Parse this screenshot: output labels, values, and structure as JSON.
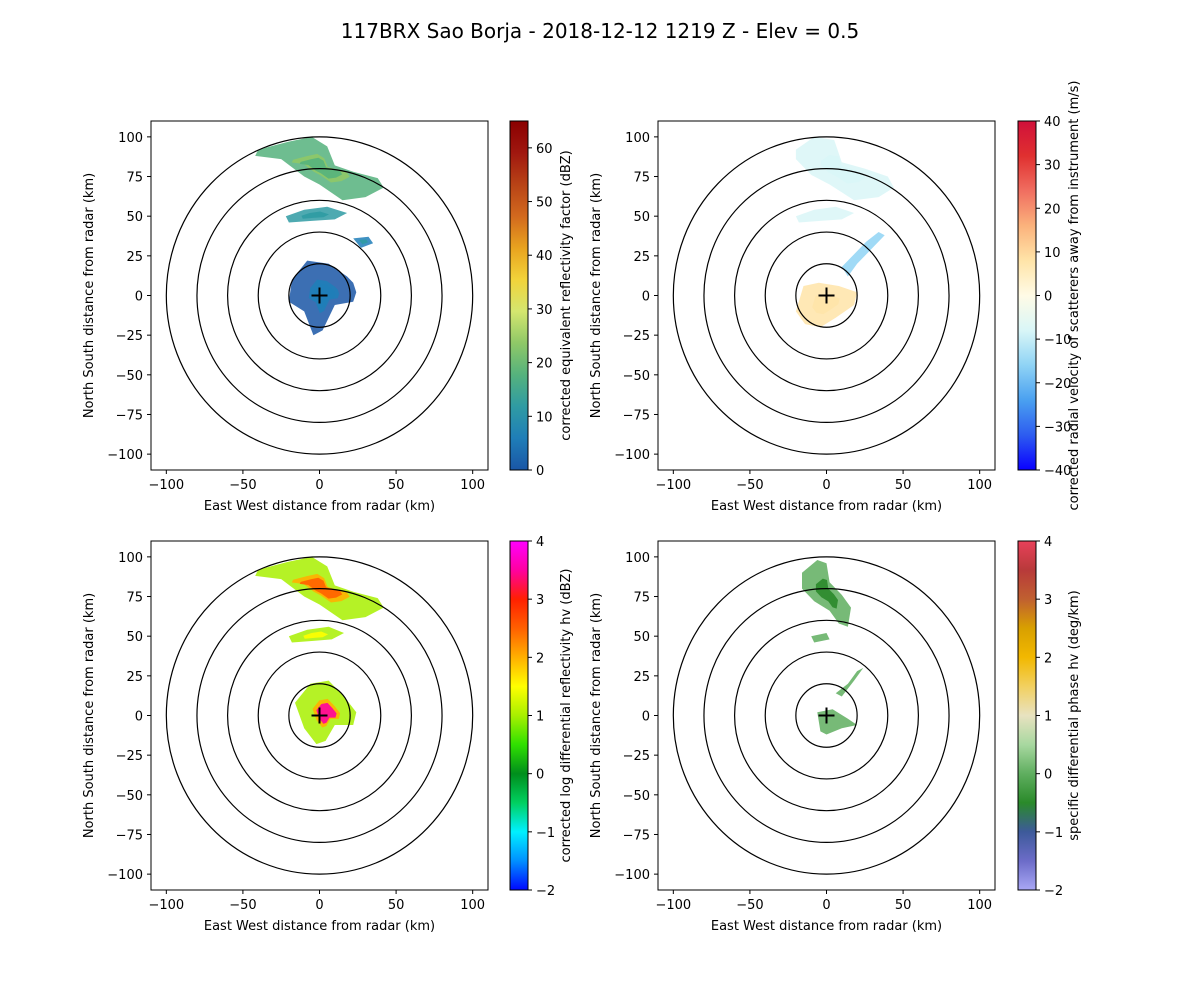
{
  "title": "117BRX Sao Borja - 2018-12-12 1219 Z -  Elev = 0.5",
  "chart_data": [
    {
      "type": "heatmap",
      "panel": "top-left",
      "field": "reflectivity",
      "xlabel": "East West distance from radar (km)",
      "ylabel": "North South distance from radar (km)",
      "xlim": [
        -110,
        110
      ],
      "ylim": [
        -110,
        110
      ],
      "xticks": [
        -100,
        -50,
        0,
        50,
        100
      ],
      "yticks": [
        -100,
        -75,
        -50,
        -25,
        0,
        25,
        50,
        75,
        100
      ],
      "range_rings_km": [
        20,
        40,
        60,
        80,
        100
      ],
      "colorbar": {
        "label": "corrected equivalent reflectivity factor (dBZ)",
        "range": [
          0,
          65
        ],
        "ticks": [
          0,
          10,
          20,
          30,
          40,
          50,
          60
        ],
        "colors": [
          "#1a56a6",
          "#1f7eb8",
          "#2f9ba3",
          "#55b27d",
          "#8fc867",
          "#d4e66f",
          "#f2d33a",
          "#e8a31f",
          "#d2691e",
          "#b84316",
          "#a0170f",
          "#8a0000"
        ]
      },
      "echo_regions": [
        {
          "name": "northern band",
          "points": [
            [
              -40,
              92
            ],
            [
              -20,
              97
            ],
            [
              -5,
              100
            ],
            [
              5,
              94
            ],
            [
              10,
              82
            ],
            [
              22,
              78
            ],
            [
              38,
              74
            ],
            [
              42,
              68
            ],
            [
              30,
              62
            ],
            [
              15,
              60
            ],
            [
              0,
              70
            ],
            [
              -10,
              75
            ],
            [
              -25,
              86
            ],
            [
              -42,
              88
            ]
          ],
          "values": [
            20,
            22,
            18
          ]
        },
        {
          "name": "mid band",
          "points": [
            [
              -22,
              50
            ],
            [
              -10,
              54
            ],
            [
              5,
              56
            ],
            [
              18,
              52
            ],
            [
              10,
              48
            ],
            [
              -5,
              47
            ],
            [
              -20,
              46
            ]
          ],
          "values": [
            14,
            16
          ]
        },
        {
          "name": "east patch",
          "points": [
            [
              22,
              36
            ],
            [
              32,
              37
            ],
            [
              35,
              33
            ],
            [
              27,
              30
            ]
          ],
          "values": [
            10,
            12
          ]
        },
        {
          "name": "near-radar core",
          "points": [
            [
              -18,
              10
            ],
            [
              -8,
              22
            ],
            [
              6,
              20
            ],
            [
              18,
              12
            ],
            [
              22,
              8
            ],
            [
              24,
              2
            ],
            [
              22,
              -4
            ],
            [
              10,
              -6
            ],
            [
              2,
              -22
            ],
            [
              -4,
              -25
            ],
            [
              -10,
              -10
            ],
            [
              -20,
              -4
            ]
          ],
          "values": [
            4,
            6,
            8
          ]
        }
      ]
    },
    {
      "type": "heatmap",
      "panel": "top-right",
      "field": "velocity",
      "xlabel": "East West distance from radar (km)",
      "ylabel": "North South distance from radar (km)",
      "xlim": [
        -110,
        110
      ],
      "ylim": [
        -110,
        110
      ],
      "xticks": [
        -100,
        -50,
        0,
        50,
        100
      ],
      "yticks": [
        -100,
        -75,
        -50,
        -25,
        0,
        25,
        50,
        75,
        100
      ],
      "range_rings_km": [
        20,
        40,
        60,
        80,
        100
      ],
      "colorbar": {
        "label": "corrected radial velocity of scatterers away from instrument (m/s)",
        "range": [
          -40,
          40
        ],
        "ticks": [
          -40,
          -30,
          -20,
          -10,
          0,
          10,
          20,
          30,
          40
        ],
        "colors": [
          "#0a00ff",
          "#2d5cf0",
          "#4aa0f0",
          "#8fd3f5",
          "#d9f6f7",
          "#fffbe6",
          "#ffe4a8",
          "#fbb27c",
          "#f06e60",
          "#e03030",
          "#d0103a"
        ]
      },
      "echo_regions": [
        {
          "name": "northern band",
          "points": [
            [
              -20,
              92
            ],
            [
              -8,
              100
            ],
            [
              5,
              98
            ],
            [
              10,
              84
            ],
            [
              25,
              80
            ],
            [
              40,
              75
            ],
            [
              44,
              68
            ],
            [
              34,
              62
            ],
            [
              18,
              60
            ],
            [
              2,
              70
            ],
            [
              -10,
              76
            ],
            [
              -20,
              86
            ]
          ],
          "values": [
            -8,
            -10
          ]
        },
        {
          "name": "mid band",
          "points": [
            [
              -20,
              50
            ],
            [
              -8,
              54
            ],
            [
              6,
              56
            ],
            [
              18,
              52
            ],
            [
              10,
              48
            ],
            [
              -4,
              47
            ],
            [
              -18,
              46
            ]
          ],
          "values": [
            -6
          ]
        },
        {
          "name": "northeast streak",
          "points": [
            [
              10,
              18
            ],
            [
              18,
              26
            ],
            [
              26,
              34
            ],
            [
              34,
              40
            ],
            [
              38,
              38
            ],
            [
              30,
              30
            ],
            [
              20,
              20
            ],
            [
              14,
              12
            ]
          ],
          "values": [
            -12
          ]
        },
        {
          "name": "near-radar",
          "points": [
            [
              -15,
              6
            ],
            [
              -5,
              8
            ],
            [
              8,
              6
            ],
            [
              20,
              2
            ],
            [
              18,
              -6
            ],
            [
              6,
              -14
            ],
            [
              -4,
              -20
            ],
            [
              -14,
              -18
            ],
            [
              -20,
              -10
            ]
          ],
          "values": [
            4,
            6
          ]
        }
      ]
    },
    {
      "type": "heatmap",
      "panel": "bottom-left",
      "field": "differential_reflectivity",
      "xlabel": "East West distance from radar (km)",
      "ylabel": "North South distance from radar (km)",
      "xlim": [
        -110,
        110
      ],
      "ylim": [
        -110,
        110
      ],
      "xticks": [
        -100,
        -50,
        0,
        50,
        100
      ],
      "yticks": [
        -100,
        -75,
        -50,
        -25,
        0,
        25,
        50,
        75,
        100
      ],
      "range_rings_km": [
        20,
        40,
        60,
        80,
        100
      ],
      "colorbar": {
        "label": "corrected log differential reflectivity hv (dBZ)",
        "range": [
          -2,
          4
        ],
        "ticks": [
          -2,
          -1,
          0,
          1,
          2,
          3,
          4
        ],
        "colors": [
          "#0008ff",
          "#0090ff",
          "#00f0ff",
          "#00d060",
          "#008e1c",
          "#30e000",
          "#a8f000",
          "#ffff00",
          "#ffb000",
          "#ff6000",
          "#ff2000",
          "#ff00a0",
          "#ff00ff"
        ]
      },
      "echo_regions": [
        {
          "name": "northern band",
          "points": [
            [
              -40,
              92
            ],
            [
              -20,
              97
            ],
            [
              -5,
              100
            ],
            [
              5,
              94
            ],
            [
              10,
              82
            ],
            [
              22,
              78
            ],
            [
              38,
              74
            ],
            [
              42,
              68
            ],
            [
              30,
              62
            ],
            [
              15,
              60
            ],
            [
              0,
              70
            ],
            [
              -10,
              75
            ],
            [
              -25,
              86
            ],
            [
              -42,
              88
            ]
          ],
          "values": [
            1.2,
            1.8,
            2.5
          ]
        },
        {
          "name": "mid band",
          "points": [
            [
              -20,
              50
            ],
            [
              -8,
              54
            ],
            [
              6,
              56
            ],
            [
              16,
              52
            ],
            [
              8,
              48
            ],
            [
              -4,
              47
            ],
            [
              -18,
              46
            ]
          ],
          "values": [
            0.8,
            1.5
          ]
        },
        {
          "name": "near-radar core",
          "points": [
            [
              -16,
              8
            ],
            [
              -6,
              20
            ],
            [
              6,
              22
            ],
            [
              16,
              12
            ],
            [
              24,
              2
            ],
            [
              22,
              -6
            ],
            [
              10,
              -6
            ],
            [
              4,
              -16
            ],
            [
              -2,
              -18
            ],
            [
              -10,
              -8
            ]
          ],
          "values": [
            1.0,
            2.0,
            3.5
          ]
        }
      ]
    },
    {
      "type": "heatmap",
      "panel": "bottom-right",
      "field": "specific_differential_phase",
      "xlabel": "East West distance from radar (km)",
      "ylabel": "North South distance from radar (km)",
      "xlim": [
        -110,
        110
      ],
      "ylim": [
        -110,
        110
      ],
      "xticks": [
        -100,
        -50,
        0,
        50,
        100
      ],
      "yticks": [
        -100,
        -75,
        -50,
        -25,
        0,
        25,
        50,
        75,
        100
      ],
      "range_rings_km": [
        20,
        40,
        60,
        80,
        100
      ],
      "colorbar": {
        "label": "specific differential phase hv (deg/km)",
        "range": [
          -2,
          4
        ],
        "ticks": [
          -2,
          -1,
          0,
          1,
          2,
          3,
          4
        ],
        "colors": [
          "#a9a7f5",
          "#6c6cc8",
          "#3d5a9a",
          "#2a8a2a",
          "#5fae5f",
          "#a8d8a0",
          "#e8e2c0",
          "#f2d060",
          "#f2b800",
          "#d8a000",
          "#c06030",
          "#b83a3a",
          "#e8405a"
        ]
      },
      "echo_regions": [
        {
          "name": "northern band",
          "points": [
            [
              -16,
              90
            ],
            [
              -6,
              98
            ],
            [
              0,
              96
            ],
            [
              2,
              84
            ],
            [
              10,
              76
            ],
            [
              16,
              68
            ],
            [
              14,
              56
            ],
            [
              8,
              58
            ],
            [
              2,
              66
            ],
            [
              -8,
              72
            ],
            [
              -16,
              80
            ]
          ],
          "values": [
            0.2,
            -0.2
          ]
        },
        {
          "name": "mid fragments",
          "points": [
            [
              -10,
              50
            ],
            [
              0,
              52
            ],
            [
              2,
              48
            ],
            [
              -8,
              46
            ]
          ],
          "values": [
            0.1
          ]
        },
        {
          "name": "northeast streak",
          "points": [
            [
              6,
              14
            ],
            [
              14,
              20
            ],
            [
              20,
              28
            ],
            [
              24,
              30
            ],
            [
              18,
              22
            ],
            [
              10,
              12
            ]
          ],
          "values": [
            0.3
          ]
        },
        {
          "name": "near-radar",
          "points": [
            [
              -6,
              2
            ],
            [
              4,
              4
            ],
            [
              14,
              -2
            ],
            [
              20,
              -6
            ],
            [
              10,
              -8
            ],
            [
              0,
              -12
            ],
            [
              -4,
              -10
            ]
          ],
          "values": [
            0.2
          ]
        }
      ]
    }
  ]
}
